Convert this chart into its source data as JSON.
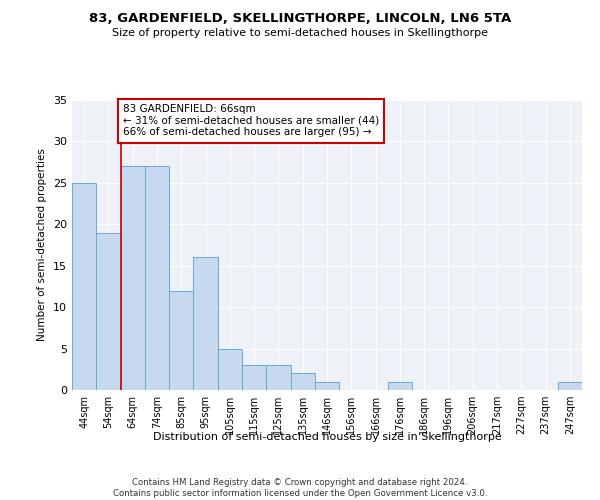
{
  "title": "83, GARDENFIELD, SKELLINGTHORPE, LINCOLN, LN6 5TA",
  "subtitle": "Size of property relative to semi-detached houses in Skellingthorpe",
  "xlabel": "Distribution of semi-detached houses by size in Skellingthorpe",
  "ylabel": "Number of semi-detached properties",
  "categories": [
    "44sqm",
    "54sqm",
    "64sqm",
    "74sqm",
    "85sqm",
    "95sqm",
    "105sqm",
    "115sqm",
    "125sqm",
    "135sqm",
    "146sqm",
    "156sqm",
    "166sqm",
    "176sqm",
    "186sqm",
    "196sqm",
    "206sqm",
    "217sqm",
    "227sqm",
    "237sqm",
    "247sqm"
  ],
  "values": [
    25,
    19,
    27,
    27,
    12,
    16,
    5,
    3,
    3,
    2,
    1,
    0,
    0,
    1,
    0,
    0,
    0,
    0,
    0,
    0,
    1
  ],
  "bar_color": "#c6d9ee",
  "bar_edge_color": "#6aaad4",
  "vline_x_index": 2,
  "vline_color": "#cc0000",
  "annotation_line1": "83 GARDENFIELD: 66sqm",
  "annotation_line2": "← 31% of semi-detached houses are smaller (44)",
  "annotation_line3": "66% of semi-detached houses are larger (95) →",
  "annotation_box_color": "white",
  "annotation_box_edge": "#cc0000",
  "ylim": [
    0,
    35
  ],
  "yticks": [
    0,
    5,
    10,
    15,
    20,
    25,
    30,
    35
  ],
  "footer": "Contains HM Land Registry data © Crown copyright and database right 2024.\nContains public sector information licensed under the Open Government Licence v3.0.",
  "bg_color": "#eef2f8"
}
